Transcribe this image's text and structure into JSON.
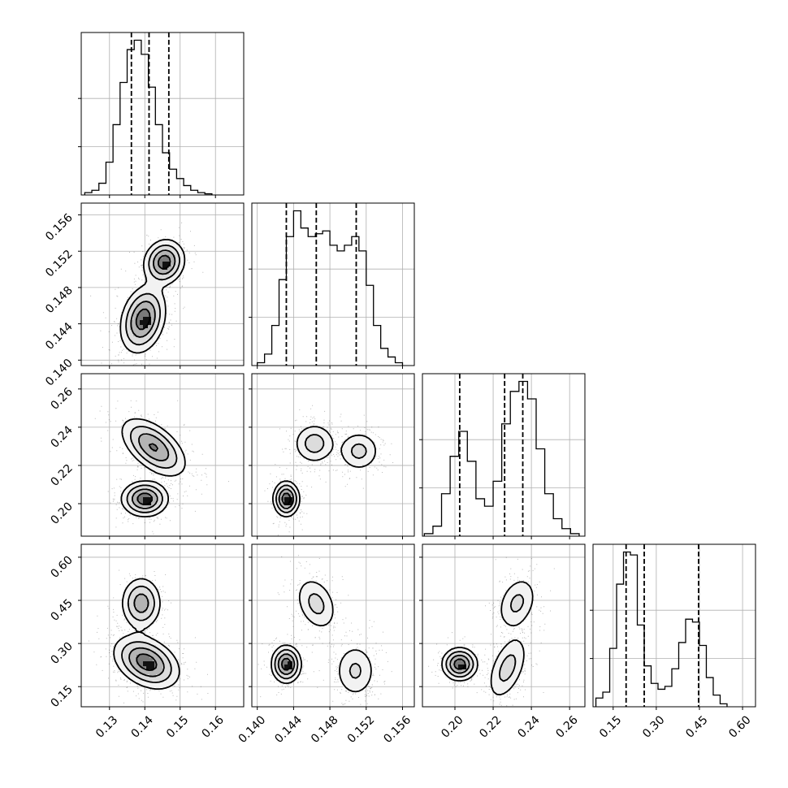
{
  "chart_data": {
    "type": "corner",
    "title": "",
    "grid": true,
    "parameters": [
      {
        "range": [
          0.122,
          0.168
        ],
        "ticks": [
          0.13,
          0.14,
          0.15,
          0.16
        ],
        "tick_labels": [
          "0.13",
          "0.14",
          "0.15",
          "0.16"
        ],
        "quantiles": [
          0.1362,
          0.1412,
          0.1468
        ],
        "histogram": [
          1,
          2,
          5,
          14,
          30,
          48,
          62,
          66,
          60,
          46,
          30,
          18,
          11,
          7,
          4,
          2,
          1,
          0.5
        ],
        "hist_bin_edges": [
          0.123,
          0.125,
          0.127,
          0.129,
          0.131,
          0.133,
          0.135,
          0.137,
          0.139,
          0.141,
          0.143,
          0.145,
          0.147,
          0.149,
          0.151,
          0.153,
          0.155,
          0.157,
          0.159
        ]
      },
      {
        "range": [
          0.1394,
          0.1573
        ],
        "ticks": [
          0.14,
          0.144,
          0.148,
          0.152,
          0.156
        ],
        "tick_labels": [
          "0.140",
          "0.144",
          "0.148",
          "0.152",
          "0.156"
        ],
        "quantiles": [
          0.1432,
          0.1465,
          0.1509
        ],
        "histogram": [
          1,
          4,
          14,
          30,
          45,
          54,
          48,
          45,
          46,
          47,
          42,
          40,
          42,
          45,
          40,
          28,
          14,
          6,
          3,
          1
        ],
        "hist_bin_edges": [
          0.14,
          0.1408,
          0.1416,
          0.1424,
          0.1432,
          0.144,
          0.1448,
          0.1456,
          0.1464,
          0.1472,
          0.148,
          0.1488,
          0.1496,
          0.1504,
          0.1512,
          0.152,
          0.1528,
          0.1536,
          0.1544,
          0.1552,
          0.156
        ]
      },
      {
        "range": [
          0.183,
          0.268
        ],
        "ticks": [
          0.2,
          0.22,
          0.24,
          0.26
        ],
        "tick_labels": [
          "0.20",
          "0.22",
          "0.24",
          "0.26"
        ],
        "quantiles": [
          0.2025,
          0.226,
          0.2355
        ],
        "histogram": [
          1,
          4,
          17,
          32,
          42,
          30,
          15,
          12,
          22,
          45,
          58,
          62,
          55,
          35,
          17,
          7,
          3,
          1
        ],
        "hist_bin_edges": [
          0.184,
          0.1885,
          0.193,
          0.1975,
          0.202,
          0.2065,
          0.211,
          0.2155,
          0.22,
          0.2245,
          0.229,
          0.2335,
          0.238,
          0.2425,
          0.247,
          0.2515,
          0.256,
          0.2605,
          0.265
        ]
      },
      {
        "range": [
          0.08,
          0.645
        ],
        "ticks": [
          0.15,
          0.3,
          0.45,
          0.6
        ],
        "tick_labels": [
          "0.15",
          "0.30",
          "0.45",
          "0.60"
        ],
        "quantiles": [
          0.195,
          0.258,
          0.447
        ],
        "histogram": [
          3,
          5,
          20,
          42,
          53,
          52,
          28,
          14,
          8,
          6,
          7,
          13,
          22,
          30,
          29,
          21,
          10,
          4,
          1
        ],
        "hist_bin_edges": [
          0.09,
          0.114,
          0.138,
          0.162,
          0.186,
          0.21,
          0.234,
          0.258,
          0.282,
          0.306,
          0.33,
          0.354,
          0.378,
          0.402,
          0.426,
          0.45,
          0.474,
          0.498,
          0.522,
          0.546
        ]
      }
    ],
    "pairs": [
      {
        "row": 1,
        "col": 0,
        "modes": [
          {
            "cx": 0.1395,
            "cy": 0.1445,
            "sx": 0.0031,
            "sy": 0.0018,
            "rho": 0.25,
            "w": 0.62
          },
          {
            "cx": 0.1455,
            "cy": 0.1508,
            "sx": 0.0028,
            "sy": 0.0012,
            "rho": 0.1,
            "w": 0.38
          }
        ]
      },
      {
        "row": 2,
        "col": 0,
        "modes": [
          {
            "cx": 0.1425,
            "cy": 0.2295,
            "sx": 0.0045,
            "sy": 0.0075,
            "rho": -0.55,
            "w": 0.62
          },
          {
            "cx": 0.14,
            "cy": 0.2025,
            "sx": 0.0032,
            "sy": 0.0045,
            "rho": 0.0,
            "w": 0.38
          }
        ]
      },
      {
        "row": 2,
        "col": 1,
        "modes": [
          {
            "cx": 0.1432,
            "cy": 0.2025,
            "sx": 0.0007,
            "sy": 0.0045,
            "rho": 0.0,
            "w": 0.38
          },
          {
            "cx": 0.1463,
            "cy": 0.2315,
            "sx": 0.0012,
            "sy": 0.0055,
            "rho": 0.0,
            "w": 0.33
          },
          {
            "cx": 0.1512,
            "cy": 0.2275,
            "sx": 0.0012,
            "sy": 0.0055,
            "rho": 0.0,
            "w": 0.29
          }
        ]
      },
      {
        "row": 3,
        "col": 0,
        "modes": [
          {
            "cx": 0.1405,
            "cy": 0.235,
            "sx": 0.0045,
            "sy": 0.045,
            "rho": -0.35,
            "w": 0.68
          },
          {
            "cx": 0.139,
            "cy": 0.44,
            "sx": 0.0028,
            "sy": 0.045,
            "rho": 0.0,
            "w": 0.32
          }
        ]
      },
      {
        "row": 3,
        "col": 1,
        "modes": [
          {
            "cx": 0.1432,
            "cy": 0.228,
            "sx": 0.0008,
            "sy": 0.032,
            "rho": 0.0,
            "w": 0.38
          },
          {
            "cx": 0.1465,
            "cy": 0.438,
            "sx": 0.0012,
            "sy": 0.05,
            "rho": -0.3,
            "w": 0.32
          },
          {
            "cx": 0.1508,
            "cy": 0.205,
            "sx": 0.0012,
            "sy": 0.05,
            "rho": 0.0,
            "w": 0.3
          }
        ]
      },
      {
        "row": 3,
        "col": 2,
        "modes": [
          {
            "cx": 0.2025,
            "cy": 0.228,
            "sx": 0.0045,
            "sy": 0.028,
            "rho": 0.0,
            "w": 0.38
          },
          {
            "cx": 0.2275,
            "cy": 0.215,
            "sx": 0.0055,
            "sy": 0.06,
            "rho": 0.5,
            "w": 0.34
          },
          {
            "cx": 0.2325,
            "cy": 0.44,
            "sx": 0.0055,
            "sy": 0.05,
            "rho": 0.3,
            "w": 0.28
          }
        ]
      }
    ]
  }
}
